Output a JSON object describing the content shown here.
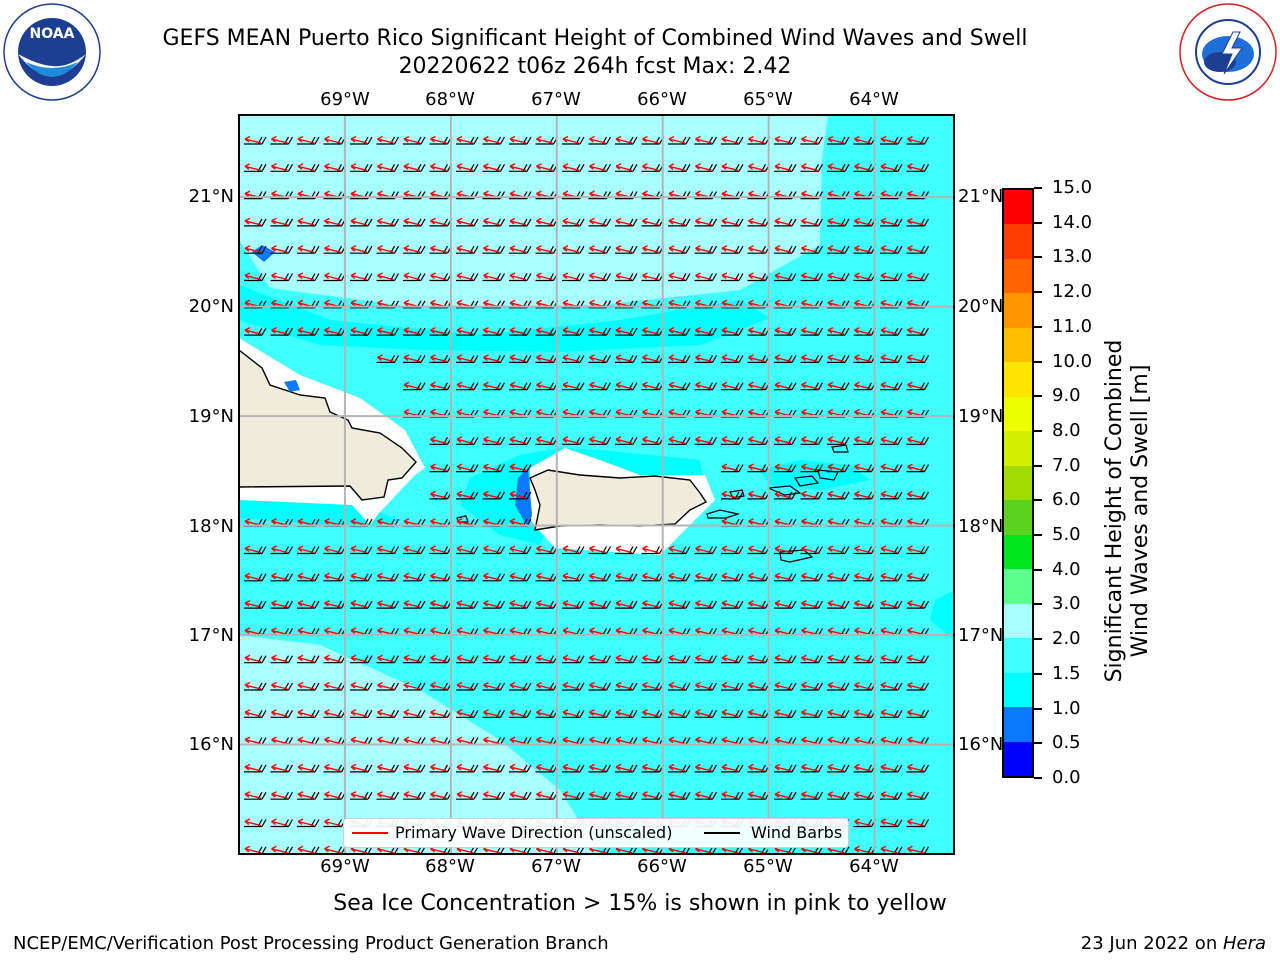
{
  "header": {
    "title_line1": "GEFS MEAN Puerto Rico Significant Height of Combined Wind Waves and Swell",
    "title_line2": "20220622 t06z 264h fcst   Max: 2.42"
  },
  "logos": {
    "noaa": {
      "text": "NOAA",
      "ring_text": "NATIONAL OCEANIC AND ATMOSPHERIC ADMINISTRATION · U.S. DEPARTMENT OF COMMERCE"
    },
    "nws": {
      "ring_text": "NATIONAL WEATHER SERVICE"
    }
  },
  "map": {
    "lon_labels": [
      "69°W",
      "68°W",
      "67°W",
      "66°W",
      "65°W",
      "64°W"
    ],
    "lat_labels": [
      "21°N",
      "20°N",
      "19°N",
      "18°N",
      "17°N",
      "16°N"
    ],
    "lon_range": [
      -70.0,
      -63.25
    ],
    "lat_range": [
      15.0,
      21.75
    ],
    "wave_direction": "toward west-northwest",
    "colors": {
      "land": "#efecdc",
      "ice_free_open_water": "#00ffff"
    }
  },
  "colorbar": {
    "label_line1": "Significant Height of Combined",
    "label_line2": "Wind Waves and Swell [m]",
    "ticks": [
      "0.0",
      "0.5",
      "1.0",
      "1.5",
      "2.0",
      "3.0",
      "4.0",
      "5.0",
      "6.0",
      "7.0",
      "8.0",
      "9.0",
      "10.0",
      "11.0",
      "12.0",
      "13.0",
      "14.0",
      "15.0"
    ],
    "colors": [
      "#0000ff",
      "#0a78ff",
      "#00ffff",
      "#40ffff",
      "#a8ffff",
      "#5aff8c",
      "#00e61e",
      "#5ad21e",
      "#a0dc00",
      "#d2f000",
      "#f0ff00",
      "#ffe600",
      "#ffbe00",
      "#ff9600",
      "#ff6400",
      "#ff3c00",
      "#ff0000"
    ]
  },
  "legend": {
    "wave_label": "Primary Wave Direction (unscaled)",
    "wind_label": "Wind Barbs",
    "wave_color": "#ff0000",
    "wind_color": "#000000"
  },
  "notes": {
    "ice": "Sea Ice Concentration > 15% is shown in pink to yellow"
  },
  "footer": {
    "left": "NCEP/EMC/Verification Post Processing Product Generation Branch",
    "date": "23 Jun 2022 on ",
    "host": "Hera"
  }
}
